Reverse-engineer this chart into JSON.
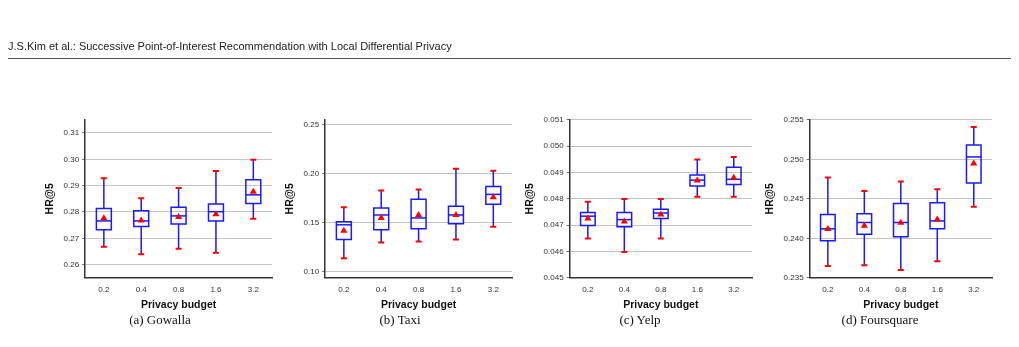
{
  "chart_data": [
    {
      "type": "box",
      "title": "(a) Gowalla",
      "xlabel": "Privacy budget",
      "ylabel": "HR@5",
      "annotations": [
        "J.S.Kim et al.: Successive Point-of-Interest Recommendation with Local Differential Privacy"
      ],
      "categories": [
        "0.2",
        "0.4",
        "0.8",
        "1.6",
        "3.2"
      ],
      "color": "#1a1aff",
      "marker": "triangle",
      "grid": "y",
      "ylim": [
        0.255,
        0.315
      ],
      "yticks": [
        0.26,
        0.27,
        0.28,
        0.29,
        {
          "value": 0.3,
          "label": "0.30"
        },
        0.31
      ],
      "boxes": [
        {
          "low": 0.2668,
          "q1": 0.2732,
          "median": 0.2766,
          "q3": 0.2813,
          "high": 0.2928,
          "mean": 0.278
        },
        {
          "low": 0.2639,
          "q1": 0.2745,
          "median": 0.2766,
          "q3": 0.2805,
          "high": 0.2852,
          "mean": 0.2771
        },
        {
          "low": 0.266,
          "q1": 0.2754,
          "median": 0.2785,
          "q3": 0.2818,
          "high": 0.2891,
          "mean": 0.2785
        },
        {
          "low": 0.2645,
          "q1": 0.2766,
          "median": 0.2801,
          "q3": 0.283,
          "high": 0.2956,
          "mean": 0.2795
        },
        {
          "low": 0.2774,
          "q1": 0.2832,
          "median": 0.2865,
          "q3": 0.2922,
          "high": 0.2998,
          "mean": 0.2881
        }
      ]
    },
    {
      "type": "box",
      "title": "(b) Taxi",
      "xlabel": "Privacy budget",
      "ylabel": "HR@5",
      "categories": [
        "0.2",
        "0.4",
        "0.8",
        "1.6",
        "3.2"
      ],
      "color": "#1a1aff",
      "marker": "triangle",
      "grid": "y",
      "ylim": [
        0.094,
        0.255
      ],
      "yticks": [
        {
          "value": 0.1,
          "label": "0.10"
        },
        0.15,
        {
          "value": 0.2,
          "label": "0.20"
        },
        0.25
      ],
      "boxes": [
        {
          "low": 0.114,
          "q1": 0.133,
          "median": 0.148,
          "q3": 0.151,
          "high": 0.166,
          "mean": 0.143
        },
        {
          "low": 0.13,
          "q1": 0.143,
          "median": 0.158,
          "q3": 0.165,
          "high": 0.183,
          "mean": 0.156
        },
        {
          "low": 0.131,
          "q1": 0.144,
          "median": 0.155,
          "q3": 0.174,
          "high": 0.184,
          "mean": 0.159
        },
        {
          "low": 0.133,
          "q1": 0.149,
          "median": 0.158,
          "q3": 0.167,
          "high": 0.205,
          "mean": 0.159
        },
        {
          "low": 0.146,
          "q1": 0.169,
          "median": 0.179,
          "q3": 0.187,
          "high": 0.203,
          "mean": 0.177
        }
      ]
    },
    {
      "type": "box",
      "title": "(c) Yelp",
      "xlabel": "Privacy budget",
      "ylabel": "HR@5",
      "categories": [
        "0.2",
        "0.4",
        "0.8",
        "1.6",
        "3.2"
      ],
      "color": "#1a1aff",
      "marker": "triangle",
      "grid": "y",
      "ylim": [
        0.045,
        0.051
      ],
      "yticks": [
        0.045,
        0.046,
        0.047,
        0.048,
        0.049,
        {
          "value": 0.05,
          "label": "0.050"
        },
        0.051
      ],
      "boxes": [
        {
          "low": 0.04649,
          "q1": 0.04699,
          "median": 0.04734,
          "q3": 0.04748,
          "high": 0.04789,
          "mean": 0.04729
        },
        {
          "low": 0.04598,
          "q1": 0.04694,
          "median": 0.04721,
          "q3": 0.04748,
          "high": 0.04799,
          "mean": 0.04718
        },
        {
          "low": 0.04649,
          "q1": 0.04725,
          "median": 0.04746,
          "q3": 0.0476,
          "high": 0.04799,
          "mean": 0.04744
        },
        {
          "low": 0.04808,
          "q1": 0.04849,
          "median": 0.04871,
          "q3": 0.0489,
          "high": 0.04949,
          "mean": 0.04873
        },
        {
          "low": 0.04808,
          "q1": 0.04854,
          "median": 0.04874,
          "q3": 0.0492,
          "high": 0.04959,
          "mean": 0.04884
        }
      ]
    },
    {
      "type": "box",
      "title": "(d) Foursquare",
      "xlabel": "Privacy budget",
      "ylabel": "HR@5",
      "categories": [
        "0.2",
        "0.4",
        "0.8",
        "1.6",
        "3.2"
      ],
      "color": "#1a1aff",
      "marker": "triangle",
      "grid": "y",
      "ylim": [
        0.235,
        0.255
      ],
      "yticks": [
        0.235,
        {
          "value": 0.24,
          "label": "0.240"
        },
        0.245,
        {
          "value": 0.25,
          "label": "0.250"
        },
        0.255
      ],
      "boxes": [
        {
          "low": 0.2365,
          "q1": 0.2397,
          "median": 0.2412,
          "q3": 0.243,
          "high": 0.2477,
          "mean": 0.2413
        },
        {
          "low": 0.2366,
          "q1": 0.2405,
          "median": 0.242,
          "q3": 0.2431,
          "high": 0.246,
          "mean": 0.2417
        },
        {
          "low": 0.236,
          "q1": 0.2402,
          "median": 0.242,
          "q3": 0.2444,
          "high": 0.2472,
          "mean": 0.2421
        },
        {
          "low": 0.2371,
          "q1": 0.2412,
          "median": 0.2422,
          "q3": 0.2445,
          "high": 0.2462,
          "mean": 0.2425
        },
        {
          "low": 0.244,
          "q1": 0.247,
          "median": 0.2503,
          "q3": 0.2518,
          "high": 0.2541,
          "mean": 0.2496
        }
      ]
    }
  ]
}
